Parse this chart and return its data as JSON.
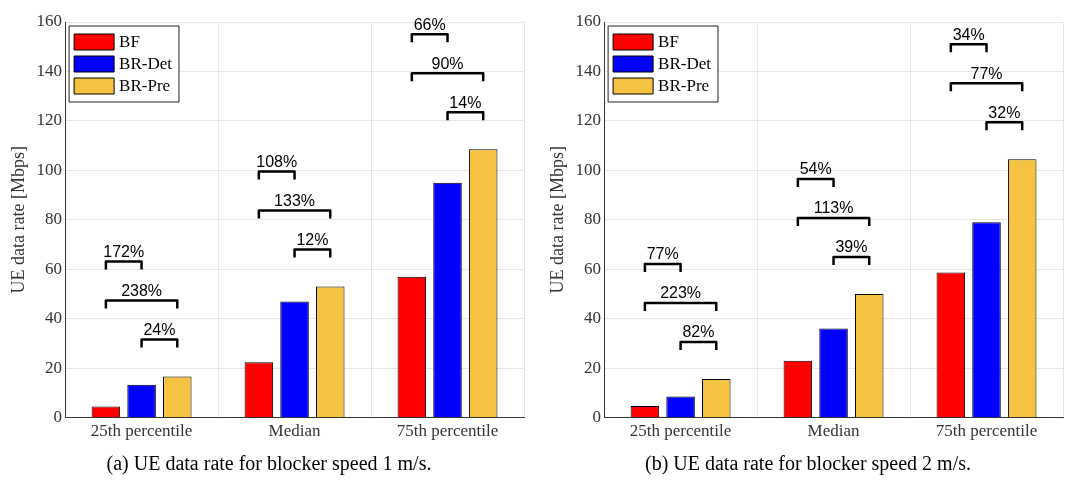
{
  "chart_data": [
    {
      "type": "bar",
      "ylabel": "UE data rate [Mbps]",
      "categories": [
        "25th percentile",
        "Median",
        "75th percentile"
      ],
      "series": [
        {
          "name": "BF",
          "color": "#ff0000",
          "values": [
            4.5,
            22.4,
            57
          ]
        },
        {
          "name": "BR-Det",
          "color": "#0000ff",
          "values": [
            13.3,
            47,
            95
          ]
        },
        {
          "name": "BR-Pre",
          "color": "#f5c242",
          "values": [
            16.6,
            53,
            108.5
          ]
        }
      ],
      "ylim": [
        0,
        160
      ],
      "yticks": [
        0,
        20,
        40,
        60,
        80,
        100,
        120,
        140,
        160
      ],
      "grid": true,
      "legend": "top left",
      "annotations": [
        "172%",
        "238%",
        "24%",
        "108%",
        "133%",
        "12%",
        "66%",
        "90%",
        "14%",
        "(a) UE data rate for blocker speed 1 m/s."
      ]
    },
    {
      "type": "bar",
      "ylabel": "UE data rate [Mbps]",
      "categories": [
        "25th percentile",
        "Median",
        "75th percentile"
      ],
      "series": [
        {
          "name": "BF",
          "color": "#ff0000",
          "values": [
            4.7,
            23,
            58.7
          ]
        },
        {
          "name": "BR-Det",
          "color": "#0000ff",
          "values": [
            8.5,
            36,
            79
          ]
        },
        {
          "name": "BR-Pre",
          "color": "#f5c242",
          "values": [
            15.6,
            50,
            104.5
          ]
        }
      ],
      "ylim": [
        0,
        160
      ],
      "yticks": [
        0,
        20,
        40,
        60,
        80,
        100,
        120,
        140,
        160
      ],
      "grid": true,
      "legend": "top left",
      "annotations": [
        "77%",
        "223%",
        "82%",
        "54%",
        "113%",
        "39%",
        "34%",
        "77%",
        "32%",
        "(b) UE data rate for blocker speed 2 m/s."
      ]
    }
  ]
}
